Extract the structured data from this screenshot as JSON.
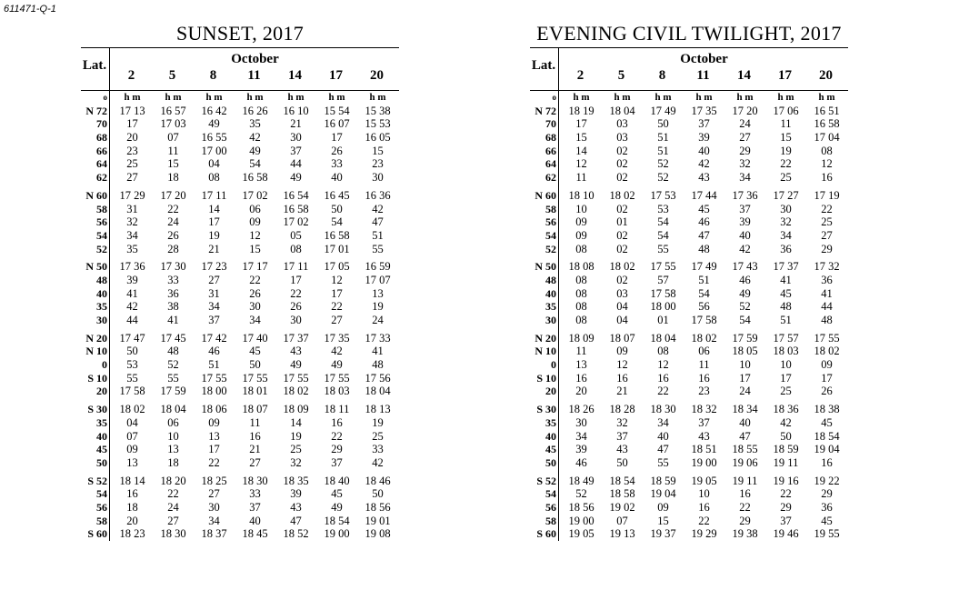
{
  "page_id": "611471-Q-1",
  "latitudes": {
    "header": "Lat.",
    "unit_symbol": "o",
    "groups": [
      [
        "N 72",
        "70",
        "68",
        "66",
        "64",
        "62"
      ],
      [
        "N 60",
        "58",
        "56",
        "54",
        "52"
      ],
      [
        "N 50",
        "48",
        "40",
        "35",
        "30"
      ],
      [
        "N 20",
        "N 10",
        "0",
        "S 10",
        "20"
      ],
      [
        "S 30",
        "35",
        "40",
        "45",
        "50"
      ],
      [
        "S 52",
        "54",
        "56",
        "58",
        "S 60"
      ]
    ]
  },
  "tables": [
    {
      "title": "SUNSET, 2017",
      "month": "October",
      "days": [
        "2",
        "5",
        "8",
        "11",
        "14",
        "17",
        "20"
      ],
      "unit": "h m",
      "columns": [
        [
          [
            "17 13",
            "17",
            "20",
            "23",
            "25",
            "27"
          ],
          [
            "17 29",
            "31",
            "32",
            "34",
            "35"
          ],
          [
            "17 36",
            "39",
            "41",
            "42",
            "44"
          ],
          [
            "17 47",
            "50",
            "53",
            "55",
            "17 58"
          ],
          [
            "18 02",
            "04",
            "07",
            "09",
            "13"
          ],
          [
            "18 14",
            "16",
            "18",
            "20",
            "18 23"
          ]
        ],
        [
          [
            "16 57",
            "17 03",
            "07",
            "11",
            "15",
            "18"
          ],
          [
            "17 20",
            "22",
            "24",
            "26",
            "28"
          ],
          [
            "17 30",
            "33",
            "36",
            "38",
            "41"
          ],
          [
            "17 45",
            "48",
            "52",
            "55",
            "17 59"
          ],
          [
            "18 04",
            "06",
            "10",
            "13",
            "18"
          ],
          [
            "18 20",
            "22",
            "24",
            "27",
            "18 30"
          ]
        ],
        [
          [
            "16 42",
            "49",
            "16 55",
            "17 00",
            "04",
            "08"
          ],
          [
            "17 11",
            "14",
            "17",
            "19",
            "21"
          ],
          [
            "17 23",
            "27",
            "31",
            "34",
            "37"
          ],
          [
            "17 42",
            "46",
            "51",
            "17 55",
            "18 00"
          ],
          [
            "18 06",
            "09",
            "13",
            "17",
            "22"
          ],
          [
            "18 25",
            "27",
            "30",
            "34",
            "18 37"
          ]
        ],
        [
          [
            "16 26",
            "35",
            "42",
            "49",
            "54",
            "16 58"
          ],
          [
            "17 02",
            "06",
            "09",
            "12",
            "15"
          ],
          [
            "17 17",
            "22",
            "26",
            "30",
            "34"
          ],
          [
            "17 40",
            "45",
            "50",
            "17 55",
            "18 01"
          ],
          [
            "18 07",
            "11",
            "16",
            "21",
            "27"
          ],
          [
            "18 30",
            "33",
            "37",
            "40",
            "18 45"
          ]
        ],
        [
          [
            "16 10",
            "21",
            "30",
            "37",
            "44",
            "49"
          ],
          [
            "16 54",
            "16 58",
            "17 02",
            "05",
            "08"
          ],
          [
            "17 11",
            "17",
            "22",
            "26",
            "30"
          ],
          [
            "17 37",
            "43",
            "49",
            "17 55",
            "18 02"
          ],
          [
            "18 09",
            "14",
            "19",
            "25",
            "32"
          ],
          [
            "18 35",
            "39",
            "43",
            "47",
            "18 52"
          ]
        ],
        [
          [
            "15 54",
            "16 07",
            "17",
            "26",
            "33",
            "40"
          ],
          [
            "16 45",
            "50",
            "54",
            "16 58",
            "17 01"
          ],
          [
            "17 05",
            "12",
            "17",
            "22",
            "27"
          ],
          [
            "17 35",
            "42",
            "49",
            "17 55",
            "18 03"
          ],
          [
            "18 11",
            "16",
            "22",
            "29",
            "37"
          ],
          [
            "18 40",
            "45",
            "49",
            "18 54",
            "19 00"
          ]
        ],
        [
          [
            "15 38",
            "15 53",
            "16 05",
            "15",
            "23",
            "30"
          ],
          [
            "16 36",
            "42",
            "47",
            "51",
            "55"
          ],
          [
            "16 59",
            "17 07",
            "13",
            "19",
            "24"
          ],
          [
            "17 33",
            "41",
            "48",
            "17 56",
            "18 04"
          ],
          [
            "18 13",
            "19",
            "25",
            "33",
            "42"
          ],
          [
            "18 46",
            "50",
            "18 56",
            "19 01",
            "19 08"
          ]
        ]
      ]
    },
    {
      "title": "EVENING CIVIL TWILIGHT, 2017",
      "month": "October",
      "days": [
        "2",
        "5",
        "8",
        "11",
        "14",
        "17",
        "20"
      ],
      "unit": "h m",
      "columns": [
        [
          [
            "18 19",
            "17",
            "15",
            "14",
            "12",
            "11"
          ],
          [
            "18 10",
            "10",
            "09",
            "09",
            "08"
          ],
          [
            "18 08",
            "08",
            "08",
            "08",
            "08"
          ],
          [
            "18 09",
            "11",
            "13",
            "16",
            "20"
          ],
          [
            "18 26",
            "30",
            "34",
            "39",
            "46"
          ],
          [
            "18 49",
            "52",
            "18 56",
            "19 00",
            "19 05"
          ]
        ],
        [
          [
            "18 04",
            "03",
            "03",
            "02",
            "02",
            "02"
          ],
          [
            "18 02",
            "02",
            "01",
            "02",
            "02"
          ],
          [
            "18 02",
            "02",
            "03",
            "04",
            "04"
          ],
          [
            "18 07",
            "09",
            "12",
            "16",
            "21"
          ],
          [
            "18 28",
            "32",
            "37",
            "43",
            "50"
          ],
          [
            "18 54",
            "18 58",
            "19 02",
            "07",
            "19 13"
          ]
        ],
        [
          [
            "17 49",
            "50",
            "51",
            "51",
            "52",
            "52"
          ],
          [
            "17 53",
            "53",
            "54",
            "54",
            "55"
          ],
          [
            "17 55",
            "57",
            "17 58",
            "18 00",
            "01"
          ],
          [
            "18 04",
            "08",
            "12",
            "16",
            "22"
          ],
          [
            "18 30",
            "34",
            "40",
            "47",
            "55"
          ],
          [
            "18 59",
            "19 04",
            "09",
            "15",
            "19 37"
          ]
        ],
        [
          [
            "17 35",
            "37",
            "39",
            "40",
            "42",
            "43"
          ],
          [
            "17 44",
            "45",
            "46",
            "47",
            "48"
          ],
          [
            "17 49",
            "51",
            "54",
            "56",
            "17 58"
          ],
          [
            "18 02",
            "06",
            "11",
            "16",
            "23"
          ],
          [
            "18 32",
            "37",
            "43",
            "18 51",
            "19 00"
          ],
          [
            "19 05",
            "10",
            "16",
            "22",
            "19 29"
          ]
        ],
        [
          [
            "17 20",
            "24",
            "27",
            "29",
            "32",
            "34"
          ],
          [
            "17 36",
            "37",
            "39",
            "40",
            "42"
          ],
          [
            "17 43",
            "46",
            "49",
            "52",
            "54"
          ],
          [
            "17 59",
            "18 05",
            "10",
            "17",
            "24"
          ],
          [
            "18 34",
            "40",
            "47",
            "18 55",
            "19 06"
          ],
          [
            "19 11",
            "16",
            "22",
            "29",
            "19 38"
          ]
        ],
        [
          [
            "17 06",
            "11",
            "15",
            "19",
            "22",
            "25"
          ],
          [
            "17 27",
            "30",
            "32",
            "34",
            "36"
          ],
          [
            "17 37",
            "41",
            "45",
            "48",
            "51"
          ],
          [
            "17 57",
            "18 03",
            "10",
            "17",
            "25"
          ],
          [
            "18 36",
            "42",
            "50",
            "18 59",
            "19 11"
          ],
          [
            "19 16",
            "22",
            "29",
            "37",
            "19 46"
          ]
        ],
        [
          [
            "16 51",
            "16 58",
            "17 04",
            "08",
            "12",
            "16"
          ],
          [
            "17 19",
            "22",
            "25",
            "27",
            "29"
          ],
          [
            "17 32",
            "36",
            "41",
            "44",
            "48"
          ],
          [
            "17 55",
            "18 02",
            "09",
            "17",
            "26"
          ],
          [
            "18 38",
            "45",
            "18 54",
            "19 04",
            "16"
          ],
          [
            "19 22",
            "29",
            "36",
            "45",
            "19 55"
          ]
        ]
      ]
    }
  ]
}
